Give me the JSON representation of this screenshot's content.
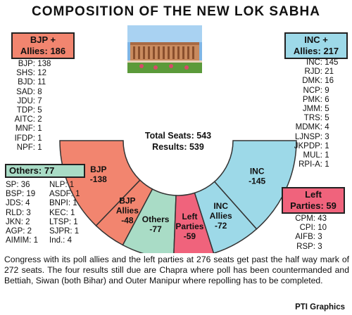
{
  "title": "COMPOSITION OF THE NEW LOK SABHA",
  "center": {
    "total": "Total Seats: 543",
    "results": "Results: 539"
  },
  "groups": {
    "bjp": {
      "badge_line1": "BJP +",
      "badge_line2": "Allies: 186",
      "parties": [
        {
          "name": "BJP:",
          "seats": 138
        },
        {
          "name": "SHS:",
          "seats": 12
        },
        {
          "name": "BJD:",
          "seats": 11
        },
        {
          "name": "SAD:",
          "seats": 8
        },
        {
          "name": "JDU:",
          "seats": 7
        },
        {
          "name": "TDP:",
          "seats": 5
        },
        {
          "name": "AITC:",
          "seats": 2
        },
        {
          "name": "MNF:",
          "seats": 1
        },
        {
          "name": "IFDP:",
          "seats": 1
        },
        {
          "name": "NPF:",
          "seats": 1
        }
      ]
    },
    "inc": {
      "badge_line1": "INC +",
      "badge_line2": "Allies: 217",
      "parties": [
        {
          "name": "INC:",
          "seats": 145
        },
        {
          "name": "RJD:",
          "seats": 21
        },
        {
          "name": "DMK:",
          "seats": 16
        },
        {
          "name": "NCP:",
          "seats": 9
        },
        {
          "name": "PMK:",
          "seats": 6
        },
        {
          "name": "JMM:",
          "seats": 5
        },
        {
          "name": "TRS:",
          "seats": 5
        },
        {
          "name": "MDMK:",
          "seats": 4
        },
        {
          "name": "LJNSP:",
          "seats": 3
        },
        {
          "name": "JKPDP:",
          "seats": 1
        },
        {
          "name": "MUL:",
          "seats": 1
        },
        {
          "name": "RPI-A:",
          "seats": 1
        }
      ]
    },
    "others": {
      "badge": "Others: 77",
      "parties_a": [
        {
          "name": "SP:",
          "seats": 36
        },
        {
          "name": "BSP:",
          "seats": 19
        },
        {
          "name": "JDS:",
          "seats": 4
        },
        {
          "name": "RLD:",
          "seats": 3
        },
        {
          "name": "JKN:",
          "seats": 2
        },
        {
          "name": "AGP:",
          "seats": 2
        },
        {
          "name": "AIMIM:",
          "seats": 1
        }
      ],
      "parties_b": [
        {
          "name": "NLP:",
          "seats": 1
        },
        {
          "name": "ASDF:",
          "seats": 1
        },
        {
          "name": "BNPI:",
          "seats": 1
        },
        {
          "name": "KEC:",
          "seats": 1
        },
        {
          "name": "LTSP:",
          "seats": 1
        },
        {
          "name": "SJPR:",
          "seats": 1
        },
        {
          "name": "Ind.:",
          "seats": 4
        }
      ]
    },
    "left": {
      "badge_line1": "Left",
      "badge_line2": "Parties: 59",
      "parties": [
        {
          "name": "CPM:",
          "seats": 43
        },
        {
          "name": "CPI:",
          "seats": 10
        },
        {
          "name": "AIFB:",
          "seats": 3
        },
        {
          "name": "RSP:",
          "seats": 3
        }
      ]
    }
  },
  "chart_data": {
    "type": "pie",
    "subtype": "half-donut",
    "center_text": [
      "Total Seats: 543",
      "Results: 539"
    ],
    "slices": [
      {
        "label": "BJP",
        "value_label": "-138",
        "value": 138,
        "color": "#f2856f"
      },
      {
        "label": "BJP Allies",
        "value_label": "-48",
        "value": 48,
        "color": "#f2856f"
      },
      {
        "label": "Others",
        "value_label": "-77",
        "value": 77,
        "color": "#a9dcc6"
      },
      {
        "label": "Left Parties",
        "value_label": "-59",
        "value": 59,
        "color": "#f0637c"
      },
      {
        "label": "INC Allies",
        "value_label": "-72",
        "value": 72,
        "color": "#9dd9e8"
      },
      {
        "label": "INC",
        "value_label": "-145",
        "value": 145,
        "color": "#9dd9e8"
      }
    ]
  },
  "caption": "Congress with its poll allies and the left parties at 276 seats get past the half way mark of 272 seats. The four results still due are Chapra where poll has been countermanded and Bettiah, Siwan (both Bihar) and Outer Manipur where repolling has to be completed.",
  "credit": "PTI Graphics",
  "colors": {
    "bjp": "#f2856f",
    "inc": "#9dd9e8",
    "others": "#a9dcc6",
    "left": "#f0637c",
    "stroke": "#333333"
  }
}
